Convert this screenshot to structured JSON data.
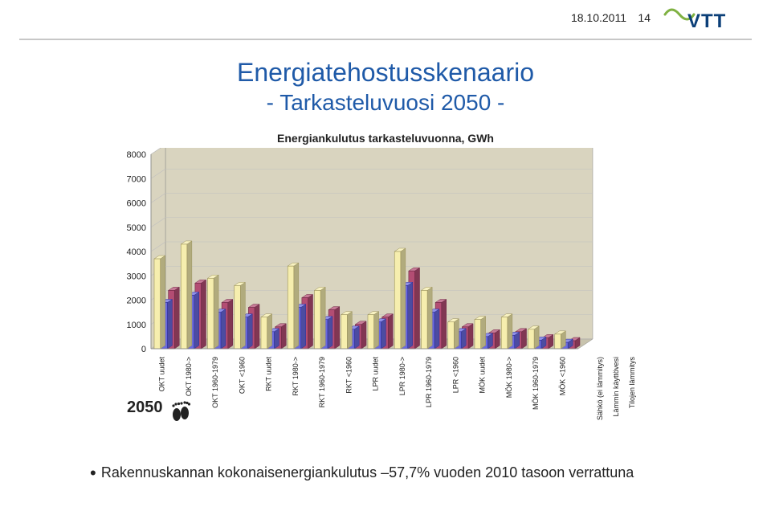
{
  "meta": {
    "date": "18.10.2011",
    "page_number": "14"
  },
  "title": "Energiatehostusskenaario",
  "subtitle": "- Tarkasteluvuosi 2050 -",
  "chart": {
    "caption": "Energiankulutus tarkasteluvuonna, GWh",
    "year_label": "2050",
    "y_axis": {
      "min": 0,
      "max": 8000,
      "step": 1000,
      "fontsize": 11
    },
    "x_fontsize": 9,
    "categories": [
      "OKT uudet",
      "OKT 1980->",
      "OKT 1960-1979",
      "OKT <1960",
      "RKT uudet",
      "RKT 1980->",
      "RKT 1960-1979",
      "RKT <1960",
      "LPR uudet",
      "LPR 1980->",
      "LPR 1960-1979",
      "LPR <1960",
      "MÖK uudet",
      "MÖK 1980->",
      "MÖK 1960-1979",
      "MÖK <1960"
    ],
    "series": [
      {
        "name": "Tilojen lämmitys",
        "color": "#f6eeae",
        "stroke": "#9a915a",
        "values": [
          3700,
          4300,
          2900,
          2600,
          1300,
          3400,
          2400,
          1400,
          1400,
          4000,
          2400,
          1100,
          1200,
          1300,
          800,
          600
        ]
      },
      {
        "name": "Lämmin käyttövesi",
        "color": "#6a6adf",
        "stroke": "#2e2e9a",
        "values": [
          1900,
          2200,
          1500,
          1300,
          700,
          1700,
          1200,
          800,
          1100,
          2600,
          1500,
          700,
          500,
          550,
          350,
          260
        ]
      },
      {
        "name": "Sähkö (ei lämmitys)",
        "color": "#b34d73",
        "stroke": "#6e2744",
        "values": [
          2400,
          2700,
          1900,
          1700,
          900,
          2100,
          1600,
          1000,
          1300,
          3200,
          1900,
          900,
          650,
          700,
          450,
          330
        ]
      }
    ],
    "plot_bg": "#ece8d8",
    "floor_color": "#c8c3ad",
    "wall_color": "#d9d4bf",
    "grid_color": "#bfbfbf",
    "axis_color": "#888888"
  },
  "bullet": "Rakennuskannan kokonaisenergiankulutus –57,7% vuoden 2010 tasoon verrattuna",
  "logo": {
    "primary": "#0b3f78",
    "accent": "#7fb142",
    "text": "VTT"
  }
}
